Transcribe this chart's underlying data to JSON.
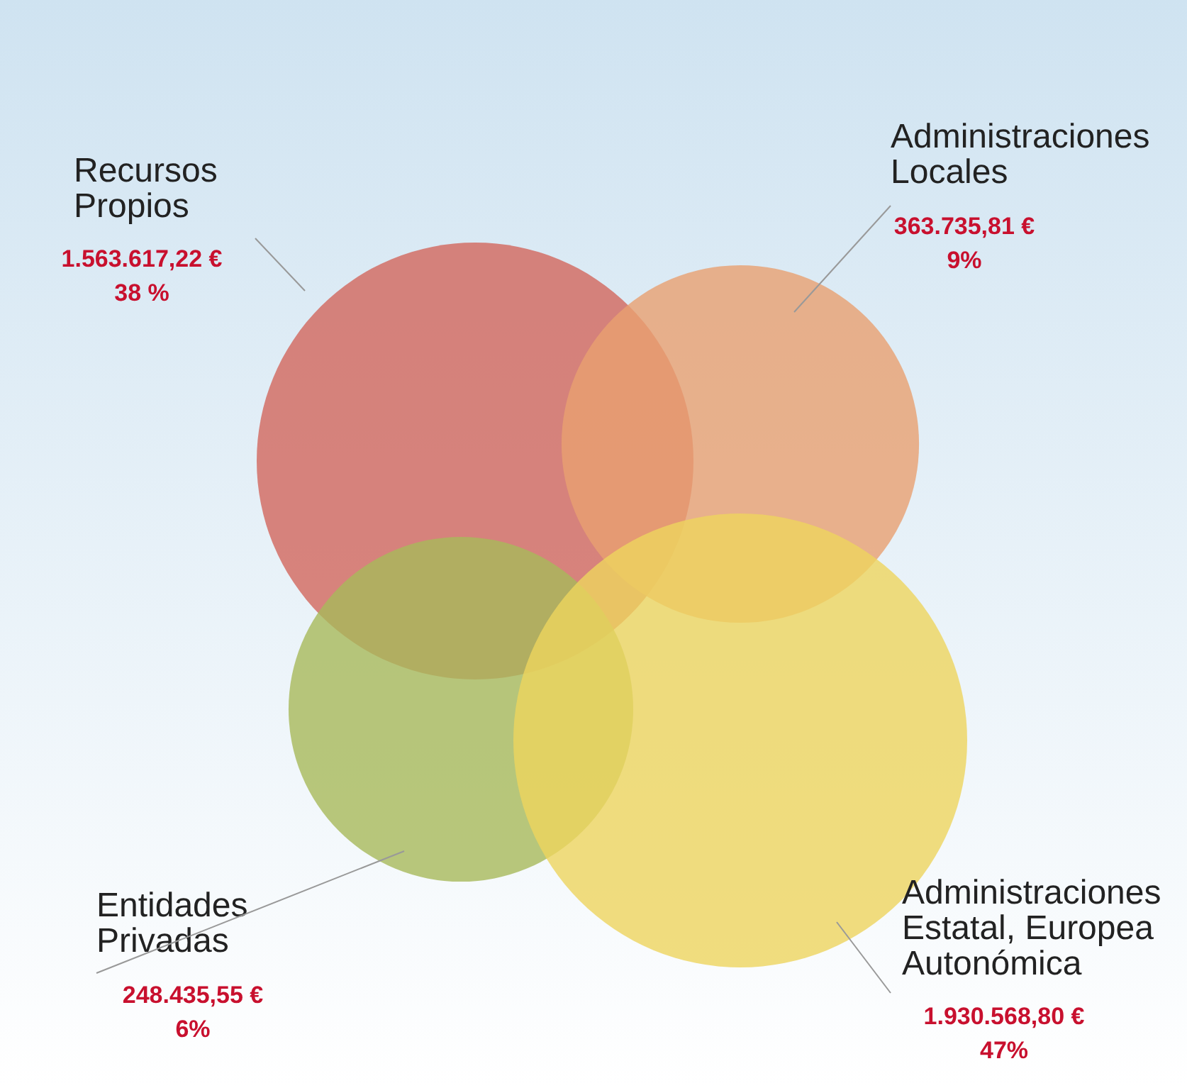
{
  "chart_data": {
    "type": "other",
    "categories": [
      "Recursos\nPropios",
      "Administraciones\nLocales",
      "Entidades\nPrivadas",
      "Administraciones\nEstatal, Europea\nAutonómica"
    ],
    "values": [
      1563617.22,
      363735.81,
      248435.55,
      1930568.8
    ],
    "value_labels": [
      "1.563.617,22 €\n38 %",
      "363.735,81 €\n9%",
      "248.435,55 €\n6%",
      "1.930.568,80 €\n47%"
    ],
    "colors": [
      "#d2665c",
      "#e9a070",
      "#a8b95a",
      "#eed55e"
    ]
  }
}
